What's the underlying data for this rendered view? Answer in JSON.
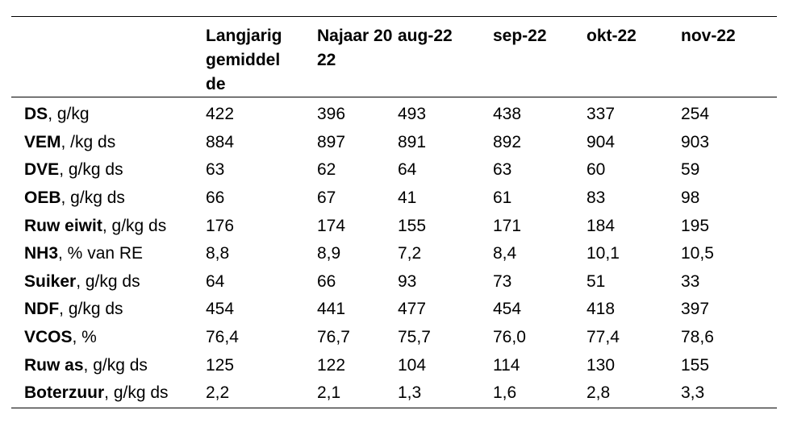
{
  "table": {
    "headers": [
      "",
      "Langjarig gemiddelde",
      "Najaar 2022",
      "aug-22",
      "sep-22",
      "okt-22",
      "nov-22"
    ],
    "rows": [
      {
        "label_bold": "DS",
        "label_rest": ", g/kg",
        "values": [
          "422",
          "396",
          "493",
          "438",
          "337",
          "254"
        ]
      },
      {
        "label_bold": "VEM",
        "label_rest": ", /kg ds",
        "values": [
          "884",
          "897",
          "891",
          "892",
          "904",
          "903"
        ]
      },
      {
        "label_bold": "DVE",
        "label_rest": ", g/kg ds",
        "values": [
          "63",
          "62",
          "64",
          "63",
          "60",
          "59"
        ]
      },
      {
        "label_bold": "OEB",
        "label_rest": ", g/kg ds",
        "values": [
          "66",
          "67",
          "41",
          "61",
          "83",
          "98"
        ]
      },
      {
        "label_bold": "Ruw eiwit",
        "label_rest": ", g/kg ds",
        "values": [
          "176",
          "174",
          "155",
          "171",
          "184",
          "195"
        ]
      },
      {
        "label_bold": "NH3",
        "label_rest": ", % van RE",
        "values": [
          "8,8",
          "8,9",
          "7,2",
          "8,4",
          "10,1",
          "10,5"
        ]
      },
      {
        "label_bold": "Suiker",
        "label_rest": ", g/kg ds",
        "values": [
          "64",
          "66",
          "93",
          "73",
          "51",
          "33"
        ]
      },
      {
        "label_bold": "NDF",
        "label_rest": ", g/kg ds",
        "values": [
          "454",
          "441",
          "477",
          "454",
          "418",
          "397"
        ]
      },
      {
        "label_bold": "VCOS",
        "label_rest": ", %",
        "values": [
          "76,4",
          "76,7",
          "75,7",
          "76,0",
          "77,4",
          "78,6"
        ]
      },
      {
        "label_bold": "Ruw as",
        "label_rest": ", g/kg ds",
        "values": [
          "125",
          "122",
          "104",
          "114",
          "130",
          "155"
        ]
      },
      {
        "label_bold": "Boterzuur",
        "label_rest": ", g/kg ds",
        "values": [
          "2,2",
          "2,1",
          "1,3",
          "1,6",
          "2,8",
          "3,3"
        ]
      }
    ]
  }
}
